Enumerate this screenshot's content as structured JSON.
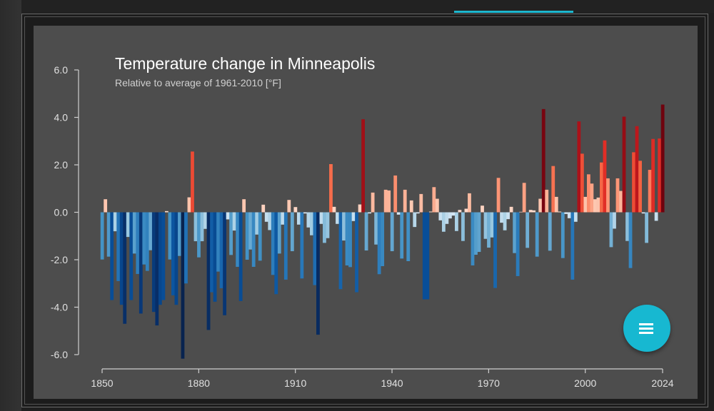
{
  "chart_data": {
    "type": "bar",
    "title": "Temperature change in Minneapolis",
    "subtitle": "Relative to average of 1961-2010  [°F]",
    "xlabel": "",
    "ylabel": "",
    "ylim": [
      -6.0,
      6.0
    ],
    "xlim": [
      1850,
      2024
    ],
    "y_ticks": [
      "6.0",
      "4.0",
      "2.0",
      "0.0",
      "-2.0",
      "-4.0",
      "-6.0"
    ],
    "x_ticks": [
      "1850",
      "1880",
      "1910",
      "1940",
      "1970",
      "2000",
      "2024"
    ],
    "grid": false,
    "color_scale": {
      "cold": "#08306b",
      "neutral": "#f7f7f7",
      "warm": "#67000d"
    },
    "x_start": 1850,
    "values": [
      -1.99,
      0.55,
      -1.87,
      -3.7,
      -0.8,
      -2.9,
      -3.9,
      -4.7,
      -1.04,
      -3.7,
      -1.74,
      -2.6,
      -4.27,
      -2.2,
      -2.47,
      -1.6,
      -4.2,
      -4.77,
      -3.9,
      -3.7,
      0.05,
      -1.99,
      -3.5,
      -3.9,
      -1.84,
      -6.17,
      -3.0,
      0.63,
      2.56,
      -1.22,
      -1.9,
      -1.22,
      -0.7,
      -4.96,
      -3.37,
      -3.77,
      -2.5,
      -3.2,
      -4.34,
      -0.3,
      -1.8,
      -0.77,
      -2.3,
      -3.74,
      0.55,
      -2.0,
      -1.57,
      -2.3,
      -0.94,
      -2.04,
      0.32,
      -0.4,
      -0.75,
      -2.64,
      -3.45,
      -1.74,
      -0.52,
      -2.84,
      0.52,
      -1.64,
      0.22,
      -0.52,
      -2.79,
      -0.05,
      -0.64,
      -0.97,
      -3.07,
      -5.16,
      -0.49,
      -1.29,
      -1.09,
      2.03,
      0.23,
      -0.49,
      -3.24,
      -1.19,
      -2.24,
      -2.31,
      -0.37,
      -3.37,
      0.33,
      3.92,
      -1.61,
      -0.05,
      0.83,
      -1.36,
      -2.61,
      -2.27,
      0.95,
      0.92,
      -1.64,
      1.55,
      -0.1,
      -1.95,
      0.95,
      -2.06,
      0.5,
      -0.62,
      -0.05,
      0.77,
      -3.67,
      -3.67,
      0.03,
      1.06,
      0.57,
      -0.34,
      -0.82,
      -0.49,
      -0.26,
      -0.14,
      -0.79,
      0.1,
      -1.21,
      0.15,
      0.8,
      -2.24,
      -1.79,
      -1.67,
      0.28,
      -1.12,
      -1.49,
      -1.06,
      -3.19,
      1.45,
      -0.44,
      -0.76,
      -0.29,
      0.23,
      -1.72,
      -2.69,
      0.02,
      1.24,
      -1.5,
      0.1,
      0.08,
      -1.87,
      0.57,
      4.35,
      0.95,
      -1.62,
      1.95,
      0.65,
      0.03,
      -1.93,
      -0.07,
      -0.25,
      -2.84,
      -0.4,
      3.83,
      2.47,
      0.65,
      1.6,
      1.21,
      0.55,
      0.62,
      2.1,
      3.03,
      1.43,
      -1.47,
      -0.69,
      1.43,
      0.9,
      4.03,
      -1.21,
      -2.35,
      2.53,
      3.63,
      2.17,
      -0.05,
      -1.29,
      1.79,
      3.09,
      -0.36,
      3.11,
      4.54
    ]
  },
  "ui": {
    "accent": "#17b8d1",
    "fab_icon": "menu-icon"
  }
}
